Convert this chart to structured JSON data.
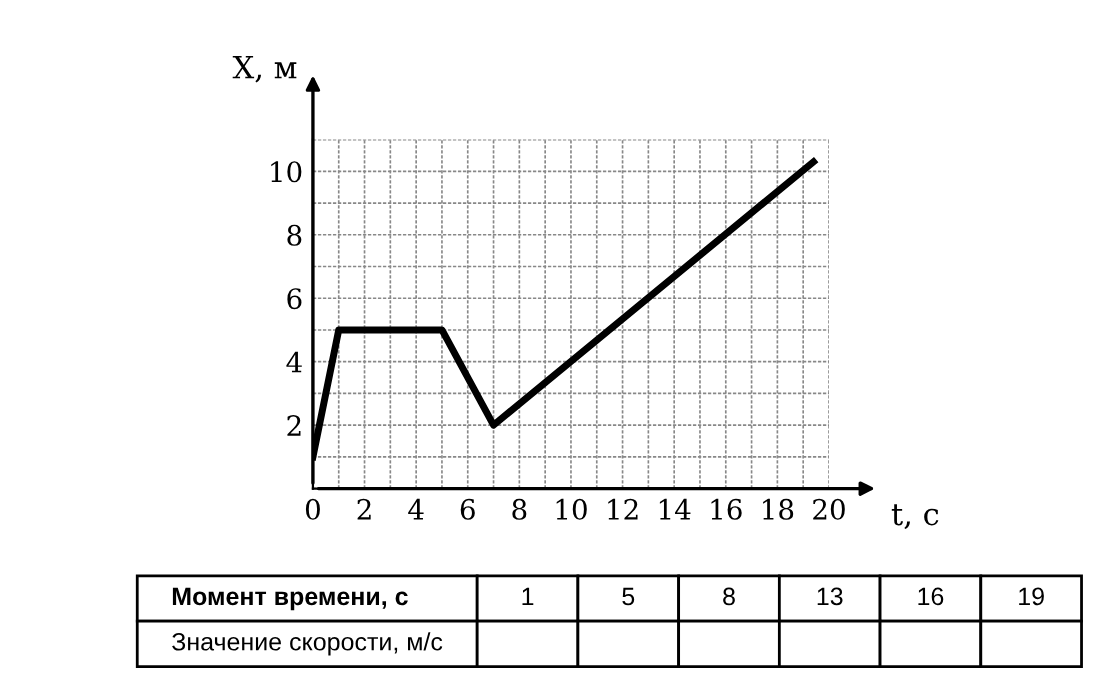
{
  "chart_data": {
    "type": "line",
    "xlabel": "t, с",
    "ylabel": "X, м",
    "series": [
      {
        "color": "#000000",
        "x": [
          0,
          1,
          5,
          7,
          19.4
        ],
        "values": [
          1,
          5,
          5,
          2,
          10.3
        ]
      }
    ],
    "xlim": [
      0,
      20
    ],
    "ylim": [
      0,
      11
    ],
    "xticks": [
      0,
      2,
      4,
      6,
      8,
      10,
      12,
      14,
      16,
      18,
      20
    ],
    "yticks": [
      2,
      4,
      6,
      8,
      10
    ],
    "grid": true,
    "marker": "none",
    "line_style": "solid",
    "annotations": [
      "Момент времени, с",
      "1",
      "5",
      "8",
      "13",
      "16",
      "19",
      "Значение скорости, м/с"
    ]
  }
}
